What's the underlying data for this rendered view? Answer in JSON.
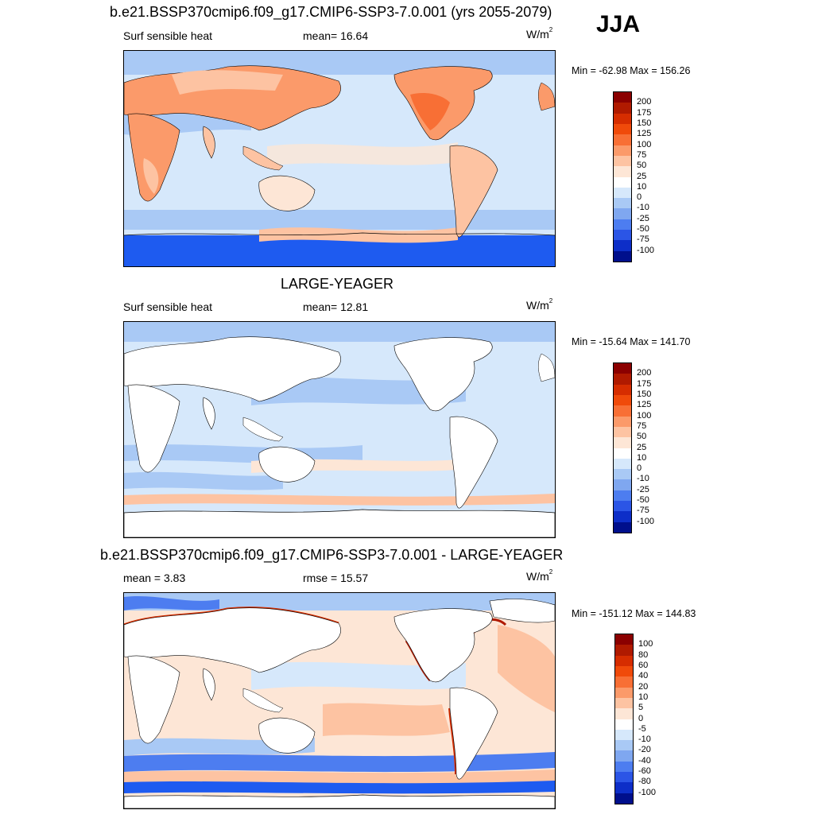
{
  "header": {
    "title": "b.e21.BSSP370cmip6.f09_g17.CMIP6-SSP3-7.0.001 (yrs 2055-2079)",
    "season": "JJA"
  },
  "panel1": {
    "variable": "Surf sensible heat",
    "mean_label": "mean=  16.64",
    "units_base": "W/m",
    "units_exp": "2",
    "minmax": "Min = -62.98 Max = 156.26"
  },
  "panel2": {
    "title": "LARGE-YEAGER",
    "variable": "Surf sensible heat",
    "mean_label": "mean=  12.81",
    "units_base": "W/m",
    "units_exp": "2",
    "minmax": "Min = -15.64 Max = 141.70"
  },
  "panel3": {
    "title": "b.e21.BSSP370cmip6.f09_g17.CMIP6-SSP3-7.0.001 - LARGE-YEAGER",
    "mean_label": "mean =   3.83",
    "rmse_label": "rmse =  15.57",
    "units_base": "W/m",
    "units_exp": "2",
    "minmax": "Min = -151.12 Max = 144.83"
  },
  "colorbar_abs": {
    "labels": [
      "200",
      "175",
      "150",
      "125",
      "100",
      "75",
      "50",
      "25",
      "10",
      "0",
      "-10",
      "-25",
      "-50",
      "-75",
      "-100"
    ],
    "colors": [
      "#8b0000",
      "#b01a00",
      "#d62d00",
      "#f04a0a",
      "#f86f35",
      "#fb9a6a",
      "#fdc3a2",
      "#fde6d6",
      "#ffffff",
      "#d6e8fb",
      "#a9c9f5",
      "#7fa7f0",
      "#4d7df0",
      "#2b55e6",
      "#0d2ec8",
      "#000f8c"
    ]
  },
  "colorbar_diff": {
    "labels": [
      "100",
      "80",
      "60",
      "40",
      "20",
      "10",
      "5",
      "0",
      "-5",
      "-10",
      "-20",
      "-40",
      "-60",
      "-80",
      "-100"
    ],
    "colors": [
      "#8b0000",
      "#b01a00",
      "#d62d00",
      "#f04a0a",
      "#f86f35",
      "#fb9a6a",
      "#fdc3a2",
      "#fde6d6",
      "#ffffff",
      "#d6e8fb",
      "#a9c9f5",
      "#7fa7f0",
      "#4d7df0",
      "#2b55e6",
      "#0d2ec8",
      "#000f8c"
    ]
  }
}
